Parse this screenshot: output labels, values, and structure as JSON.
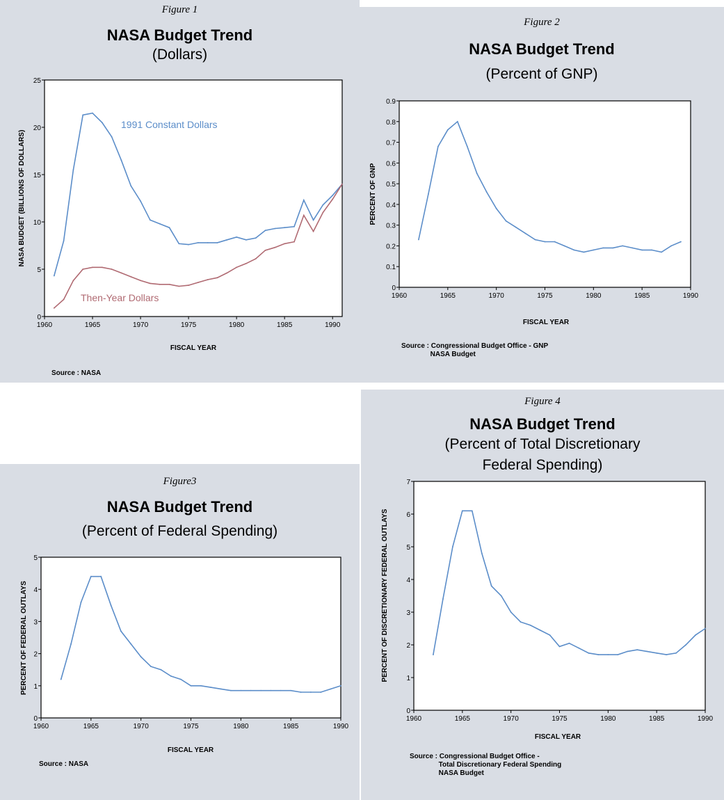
{
  "chart_data": [
    {
      "type": "line",
      "figure_label": "Figure 1",
      "title": "NASA Budget Trend",
      "subtitle": "(Dollars)",
      "xlabel": "FISCAL YEAR",
      "ylabel": "NASA BUDGET (BILLIONS OF DOLLARS)",
      "xlim": [
        1960,
        1991
      ],
      "ylim": [
        0,
        25
      ],
      "xticks": [
        1960,
        1965,
        1970,
        1975,
        1980,
        1985,
        1990
      ],
      "yticks": [
        0,
        5,
        10,
        15,
        20,
        25
      ],
      "source": "Source : NASA",
      "series": [
        {
          "name": "1991 Constant Dollars",
          "color": "#5b8dc9",
          "x": [
            1961,
            1962,
            1963,
            1964,
            1965,
            1966,
            1967,
            1968,
            1969,
            1970,
            1971,
            1972,
            1973,
            1974,
            1975,
            1976,
            1977,
            1978,
            1979,
            1980,
            1981,
            1982,
            1983,
            1984,
            1985,
            1986,
            1987,
            1988,
            1989,
            1990,
            1991
          ],
          "y": [
            4.3,
            8.0,
            15.5,
            21.3,
            21.5,
            20.5,
            19.0,
            16.5,
            13.8,
            12.2,
            10.2,
            9.8,
            9.4,
            7.7,
            7.6,
            7.8,
            7.8,
            7.8,
            8.1,
            8.4,
            8.1,
            8.3,
            9.1,
            9.3,
            9.4,
            9.5,
            12.3,
            10.2,
            11.8,
            12.8,
            14.0
          ]
        },
        {
          "name": "Then-Year Dollars",
          "color": "#b06a72",
          "x": [
            1961,
            1962,
            1963,
            1964,
            1965,
            1966,
            1967,
            1968,
            1969,
            1970,
            1971,
            1972,
            1973,
            1974,
            1975,
            1976,
            1977,
            1978,
            1979,
            1980,
            1981,
            1982,
            1983,
            1984,
            1985,
            1986,
            1987,
            1988,
            1989,
            1990,
            1991
          ],
          "y": [
            0.9,
            1.8,
            3.8,
            5.0,
            5.2,
            5.2,
            5.0,
            4.6,
            4.2,
            3.8,
            3.5,
            3.4,
            3.4,
            3.2,
            3.3,
            3.6,
            3.9,
            4.1,
            4.6,
            5.2,
            5.6,
            6.1,
            7.0,
            7.3,
            7.7,
            7.9,
            10.7,
            9.0,
            11.0,
            12.4,
            14.0
          ]
        }
      ]
    },
    {
      "type": "line",
      "figure_label": "Figure 2",
      "title": "NASA Budget Trend",
      "subtitle": "(Percent of GNP)",
      "xlabel": "FISCAL YEAR",
      "ylabel": "PERCENT OF GNP",
      "xlim": [
        1960,
        1990
      ],
      "ylim": [
        0,
        0.9
      ],
      "xticks": [
        1960,
        1965,
        1970,
        1975,
        1980,
        1985,
        1990
      ],
      "yticks": [
        0,
        0.1,
        0.2,
        0.3,
        0.4,
        0.5,
        0.6,
        0.7,
        0.8,
        0.9
      ],
      "ytick_labels": [
        "0",
        "0.1",
        "0.2",
        "0.3",
        "0.4",
        "0.5",
        "0.6",
        "0.7",
        "0.8",
        "0.9"
      ],
      "source": "Source : Congressional Budget Office - GNP\n               NASA Budget",
      "series": [
        {
          "color": "#5b8dc9",
          "x": [
            1962,
            1963,
            1964,
            1965,
            1966,
            1967,
            1968,
            1969,
            1970,
            1971,
            1972,
            1973,
            1974,
            1975,
            1976,
            1977,
            1978,
            1979,
            1980,
            1981,
            1982,
            1983,
            1984,
            1985,
            1986,
            1987,
            1988,
            1989
          ],
          "y": [
            0.23,
            0.45,
            0.68,
            0.76,
            0.8,
            0.68,
            0.55,
            0.46,
            0.38,
            0.32,
            0.29,
            0.26,
            0.23,
            0.22,
            0.22,
            0.2,
            0.18,
            0.17,
            0.18,
            0.19,
            0.19,
            0.2,
            0.19,
            0.18,
            0.18,
            0.17,
            0.2,
            0.22
          ]
        }
      ]
    },
    {
      "type": "line",
      "figure_label": "Figure3",
      "title": "NASA Budget Trend",
      "subtitle": "(Percent of Federal Spending)",
      "xlabel": "FISCAL YEAR",
      "ylabel": "PERCENT OF FEDERAL OUTLAYS",
      "xlim": [
        1960,
        1990
      ],
      "ylim": [
        0,
        5
      ],
      "xticks": [
        1960,
        1965,
        1970,
        1975,
        1980,
        1985,
        1990
      ],
      "yticks": [
        0,
        1,
        2,
        3,
        4,
        5
      ],
      "source": "Source : NASA",
      "series": [
        {
          "color": "#5b8dc9",
          "x": [
            1962,
            1963,
            1964,
            1965,
            1966,
            1967,
            1968,
            1969,
            1970,
            1971,
            1972,
            1973,
            1974,
            1975,
            1976,
            1977,
            1978,
            1979,
            1980,
            1981,
            1982,
            1983,
            1984,
            1985,
            1986,
            1987,
            1988,
            1989,
            1990
          ],
          "y": [
            1.2,
            2.3,
            3.6,
            4.4,
            4.4,
            3.5,
            2.7,
            2.3,
            1.9,
            1.6,
            1.5,
            1.3,
            1.2,
            1.0,
            1.0,
            0.95,
            0.9,
            0.85,
            0.85,
            0.85,
            0.85,
            0.85,
            0.85,
            0.85,
            0.8,
            0.8,
            0.8,
            0.9,
            1.0
          ]
        }
      ]
    },
    {
      "type": "line",
      "figure_label": "Figure 4",
      "title": "NASA Budget Trend",
      "subtitle": "(Percent of Total Discretionary\nFederal Spending)",
      "xlabel": "FISCAL YEAR",
      "ylabel": "PERCENT OF DISCRETIONARY FEDERAL OUTLAYS",
      "xlim": [
        1960,
        1990
      ],
      "ylim": [
        0,
        7
      ],
      "xticks": [
        1960,
        1965,
        1970,
        1975,
        1980,
        1985,
        1990
      ],
      "yticks": [
        0,
        1,
        2,
        3,
        4,
        5,
        6,
        7
      ],
      "source": "Source : Congressional Budget Office -\n               Total Discretionary Federal Spending\n               NASA Budget",
      "series": [
        {
          "color": "#5b8dc9",
          "x": [
            1962,
            1963,
            1964,
            1965,
            1966,
            1967,
            1968,
            1969,
            1970,
            1971,
            1972,
            1973,
            1974,
            1975,
            1976,
            1977,
            1978,
            1979,
            1980,
            1981,
            1982,
            1983,
            1984,
            1985,
            1986,
            1987,
            1988,
            1989,
            1990
          ],
          "y": [
            1.7,
            3.4,
            5.0,
            6.1,
            6.1,
            4.8,
            3.8,
            3.5,
            3.0,
            2.7,
            2.6,
            2.45,
            2.3,
            1.95,
            2.05,
            1.9,
            1.75,
            1.7,
            1.7,
            1.7,
            1.8,
            1.85,
            1.8,
            1.75,
            1.7,
            1.75,
            2.0,
            2.3,
            2.5
          ]
        }
      ]
    }
  ]
}
